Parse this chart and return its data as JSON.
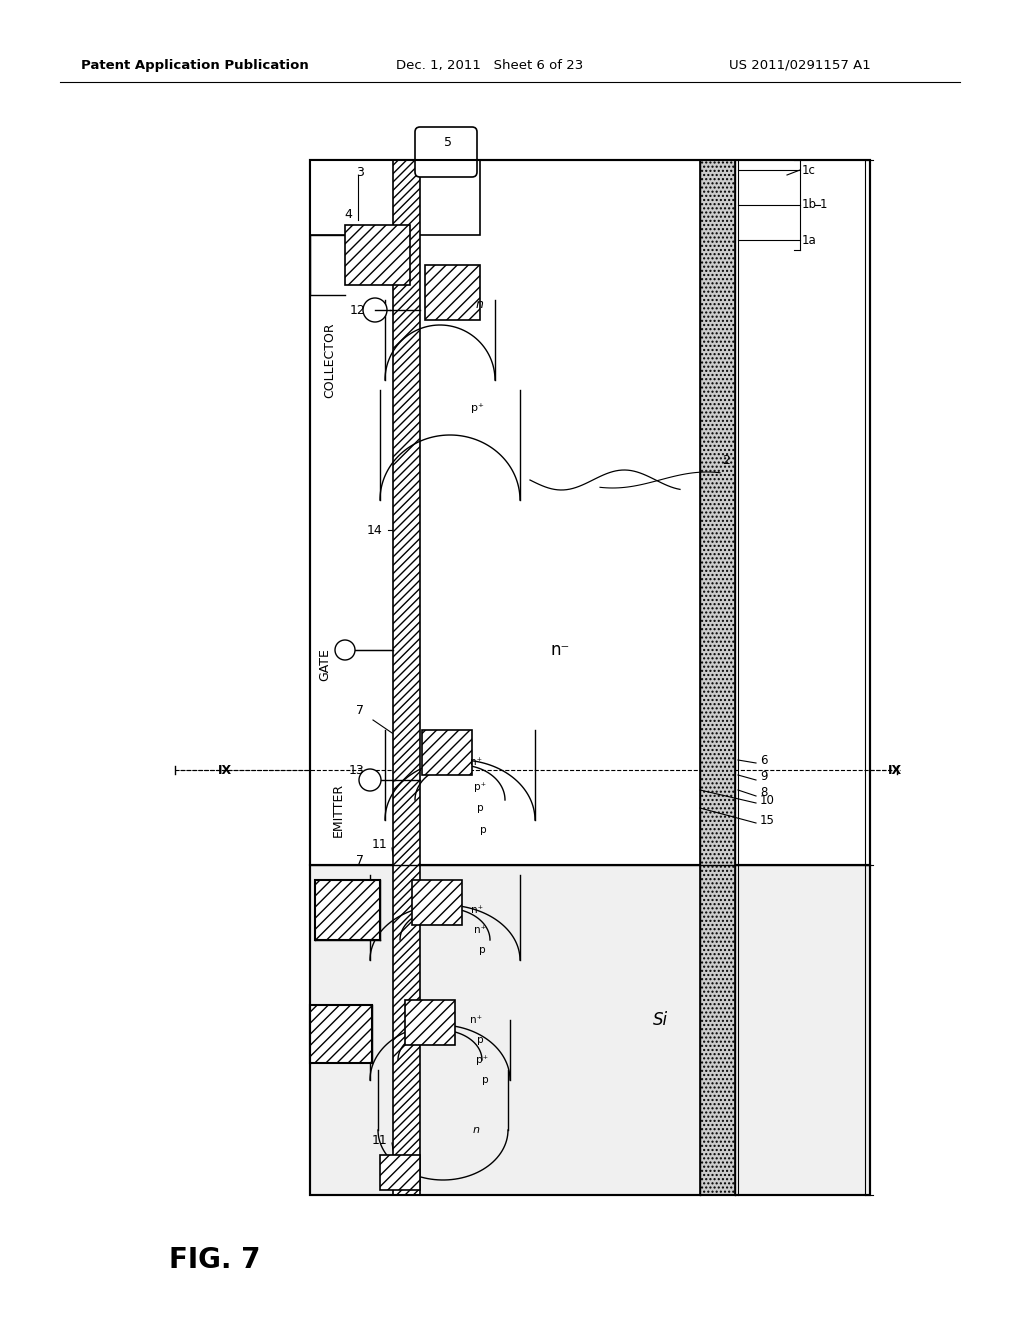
{
  "header_left": "Patent Application Publication",
  "header_mid": "Dec. 1, 2011   Sheet 6 of 23",
  "header_right": "US 2011/0291157 A1",
  "fig_label": "FIG. 7"
}
